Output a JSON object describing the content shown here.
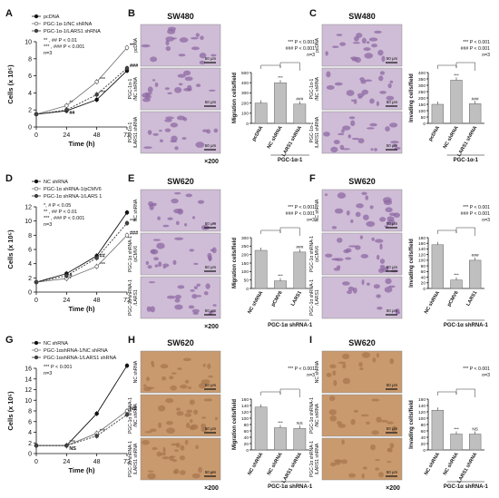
{
  "rows": [
    {
      "growth": {
        "letter": "A",
        "ylabel": "Cells (x 10⁵)",
        "xlabel": "Time (h)",
        "yticks": [
          "0",
          "2",
          "4",
          "6",
          "8",
          "10"
        ],
        "xticks": [
          "0",
          "24",
          "48",
          "72"
        ],
        "legend": [
          "pcDNA",
          "PGC-1α-1/NC shRNA",
          "PGC-1α-1/LARS1 shRNA"
        ],
        "stats": [
          "** , ## P < 0.01",
          "*** , ### P < 0.001",
          "n=3"
        ],
        "sig": [
          {
            "text": "**",
            "color": "#555555"
          },
          {
            "text": "##",
            "color": "#111111"
          },
          {
            "text": "***",
            "color": "#555555"
          },
          {
            "text": "**",
            "color": "#111111"
          },
          {
            "text": "***",
            "color": "#555555"
          },
          {
            "text": "###",
            "color": "#111111"
          }
        ]
      },
      "micro": {
        "letter": "B",
        "cell_line": "SW480",
        "mag": "×200",
        "scale": "50 μm",
        "labels": [
          "pcDNA",
          "PGC-1α-1 /NC shRNA",
          "PGC-1α-1 /LARS1 shRNA"
        ]
      },
      "bar": {
        "ylabel": "Migration cells/field",
        "yticks": [
          "0",
          "100",
          "200",
          "300",
          "400",
          "500"
        ],
        "xlabels": [
          "pcDNA",
          "NC shRNA",
          "LARS1 shRNA"
        ],
        "group": "PGC-1α-1",
        "stats": [
          "*** P < 0.001",
          "### P < 0.001",
          "n=3"
        ],
        "sig": [
          "",
          "***",
          "###"
        ]
      },
      "micro2": {
        "letter": "C",
        "cell_line": "SW480",
        "mag": "",
        "scale": "50 μm",
        "labels": [
          "pcDNA",
          "PGC-1α-1 /NC shRNA",
          "PGC-1α-1 /LARS1 shRNA"
        ]
      },
      "bar2": {
        "ylabel": "Invading cells/field",
        "yticks": [
          "0",
          "50",
          "100",
          "150",
          "200",
          "250",
          "300",
          "350",
          "400"
        ],
        "xlabels": [
          "pcDNA",
          "NC shRNA",
          "LARS1 shRNA"
        ],
        "group": "PGC-1α-1",
        "stats": [
          "*** P < 0.001",
          "### P < 0.001",
          "n=3"
        ],
        "sig": [
          "",
          "***",
          "###"
        ]
      }
    },
    {
      "growth": {
        "letter": "D",
        "ylabel": "Cells (x 10⁵)",
        "xlabel": "Time (h)",
        "yticks": [
          "0",
          "2",
          "4",
          "6",
          "8",
          "10",
          "12"
        ],
        "xticks": [
          "0",
          "24",
          "48",
          "72"
        ],
        "legend": [
          "NC shRNA",
          "PGC-1α shRNA-1/pCMV6",
          "PGC-1α shRNA-1/LARS 1"
        ],
        "stats": [
          "*, # P < 0.05",
          "** , ## P < 0.01",
          "*** , ### P < 0.001",
          "n=3"
        ],
        "sig": [
          {
            "text": "#",
            "color": "#111111"
          },
          {
            "text": "*",
            "color": "#555555"
          },
          {
            "text": "***",
            "color": "#555555"
          },
          {
            "text": "###",
            "color": "#111111"
          },
          {
            "text": "##",
            "color": "#111111"
          },
          {
            "text": "***",
            "color": "#555555"
          }
        ]
      },
      "micro": {
        "letter": "E",
        "cell_line": "SW620",
        "mag": "×200",
        "scale": "50 μm",
        "labels": [
          "NC shRNA",
          "PGC-1α shRNA-1 /pCMV6",
          "PGC-1α shRNA-1 /LARS1"
        ]
      },
      "bar": {
        "ylabel": "Migration cells/field",
        "yticks": [
          "0",
          "50",
          "100",
          "150",
          "200",
          "250",
          "300"
        ],
        "xlabels": [
          "NC shRNA",
          "pCMV6",
          "LARS1"
        ],
        "group": "PGC-1α shRNA-1",
        "stats": [
          "*** P < 0.001",
          "### P < 0.001",
          "n=3"
        ],
        "sig": [
          "",
          "***",
          "###"
        ]
      },
      "micro2": {
        "letter": "F",
        "cell_line": "SW620",
        "mag": "",
        "scale": "50 μm",
        "labels": [
          "NC shRNA",
          "PGC-1α shRNA-1 /pCMV6",
          "PGC-1α shRNA-1 /LARS1"
        ]
      },
      "bar2": {
        "ylabel": "Invading cells/field",
        "yticks": [
          "0",
          "20",
          "40",
          "60",
          "80",
          "100",
          "120",
          "140",
          "160",
          "180"
        ],
        "xlabels": [
          "NC shRNA",
          "pCMV6",
          "LARS1"
        ],
        "group": "PGC-1α shRNA-1",
        "stats": [
          "*** P < 0.001",
          "### P < 0.001",
          "n=3"
        ],
        "sig": [
          "",
          "***",
          "###"
        ]
      }
    },
    {
      "growth": {
        "letter": "G",
        "ylabel": "Cells (x 10⁵)",
        "xlabel": "Time (h)",
        "yticks": [
          "0",
          "2",
          "4",
          "6",
          "8",
          "10",
          "12",
          "14",
          "16"
        ],
        "xticks": [
          "0",
          "24",
          "48",
          "72"
        ],
        "legend": [
          "NC shRNA",
          "PGC-1αshRNA-1/NC shRNA",
          "PGC-1αshRNA-1/LARS1 shRNA"
        ],
        "stats": [
          "*** P < 0.001",
          "n=3"
        ],
        "sig": [
          {
            "text": "***",
            "color": "#555555"
          },
          {
            "text": "NS",
            "color": "#111111"
          },
          {
            "text": "***",
            "color": "#555555"
          },
          {
            "text": "NS",
            "color": "#111111"
          }
        ]
      },
      "micro": {
        "letter": "H",
        "cell_line": "SW620",
        "mag": "×200",
        "scale": "50 μm",
        "labels": [
          "NC shRNA",
          "PGC-1α shRNA-1 /NC shRNA",
          "PGC-1α shRNA-1 /LARS1 shRNA"
        ]
      },
      "bar": {
        "ylabel": "Migration cells/field",
        "yticks": [
          "0",
          "20",
          "40",
          "60",
          "80",
          "100",
          "120",
          "140",
          "160"
        ],
        "xlabels": [
          "NC shRNA",
          "NC shRNA",
          "LARS1 shRNA"
        ],
        "group": "PGC-1α shRNA-1",
        "stats": [
          "*** P < 0.001",
          "n=3"
        ],
        "sig": [
          "",
          "***",
          "NS"
        ]
      },
      "micro2": {
        "letter": "I",
        "cell_line": "SW620",
        "mag": "×200",
        "scale": "50 μm",
        "labels": [
          "NC shRNA",
          "PGC-1α shRNA-1 /NC shRNA",
          "PGC-1α shRNA-1 /LARS1 shRNA"
        ]
      },
      "bar2": {
        "ylabel": "Invading cells/field",
        "yticks": [
          "0",
          "20",
          "40",
          "60",
          "80",
          "100",
          "120",
          "140",
          "160"
        ],
        "xlabels": [
          "NC shRNA",
          "NC shRNA",
          "LARS1 shRNA"
        ],
        "group": "PGC-1α shRNA-1",
        "stats": [
          "*** P < 0.001",
          "n=3"
        ],
        "sig": [
          "",
          "***",
          "NS"
        ]
      }
    }
  ],
  "chart_data": [
    {
      "panel": "A",
      "type": "line",
      "xlabel": "Time (h)",
      "ylabel": "Cells (x 10⁵)",
      "x": [
        0,
        24,
        48,
        72
      ],
      "ylim": [
        0,
        10
      ],
      "series": [
        {
          "name": "pcDNA",
          "values": [
            1.5,
            1.9,
            3.2,
            6.6
          ]
        },
        {
          "name": "PGC-1α-1/NC shRNA",
          "values": [
            1.5,
            2.5,
            5.3,
            9.3
          ]
        },
        {
          "name": "PGC-1α-1/LARS1 shRNA",
          "values": [
            1.5,
            2.0,
            3.8,
            6.9
          ]
        }
      ]
    },
    {
      "panel": "B",
      "type": "bar",
      "ylabel": "Migration cells/field",
      "ylim": [
        0,
        500
      ],
      "categories": [
        "pcDNA",
        "NC shRNA",
        "LARS1 shRNA"
      ],
      "values": [
        200,
        400,
        190
      ]
    },
    {
      "panel": "C",
      "type": "bar",
      "ylabel": "Invading cells/field",
      "ylim": [
        0,
        400
      ],
      "categories": [
        "pcDNA",
        "NC shRNA",
        "LARS1 shRNA"
      ],
      "values": [
        150,
        340,
        155
      ]
    },
    {
      "panel": "D",
      "type": "line",
      "xlabel": "Time (h)",
      "ylabel": "Cells (x 10⁵)",
      "x": [
        0,
        24,
        48,
        72
      ],
      "ylim": [
        0,
        12
      ],
      "series": [
        {
          "name": "NC shRNA",
          "values": [
            1.4,
            2.6,
            5.1,
            11.2
          ]
        },
        {
          "name": "PGC-1α shRNA-1/pCMV6",
          "values": [
            1.4,
            1.9,
            3.6,
            8.0
          ]
        },
        {
          "name": "PGC-1α shRNA-1/LARS 1",
          "values": [
            1.4,
            2.3,
            4.8,
            9.7
          ]
        }
      ]
    },
    {
      "panel": "E",
      "type": "bar",
      "ylabel": "Migration cells/field",
      "ylim": [
        0,
        300
      ],
      "categories": [
        "NC shRNA",
        "pCMV6",
        "LARS1"
      ],
      "values": [
        225,
        45,
        215
      ]
    },
    {
      "panel": "F",
      "type": "bar",
      "ylabel": "Invading cells/field",
      "ylim": [
        0,
        180
      ],
      "categories": [
        "NC shRNA",
        "pCMV6",
        "LARS1"
      ],
      "values": [
        155,
        30,
        100
      ]
    },
    {
      "panel": "G",
      "type": "line",
      "xlabel": "Time (h)",
      "ylabel": "Cells (x 10⁵)",
      "x": [
        0,
        24,
        48,
        72
      ],
      "ylim": [
        0,
        16
      ],
      "series": [
        {
          "name": "NC shRNA",
          "values": [
            1.5,
            1.5,
            7.5,
            16.5
          ]
        },
        {
          "name": "PGC-1αshRNA-1/NC shRNA",
          "values": [
            1.5,
            1.5,
            3.8,
            8.0
          ]
        },
        {
          "name": "PGC-1αshRNA-1/LARS1 shRNA",
          "values": [
            1.5,
            1.5,
            3.3,
            7.3
          ]
        }
      ]
    },
    {
      "panel": "H",
      "type": "bar",
      "ylabel": "Migration cells/field",
      "ylim": [
        0,
        160
      ],
      "categories": [
        "NC shRNA",
        "NC shRNA",
        "LARS1 shRNA"
      ],
      "values": [
        135,
        70,
        68
      ]
    },
    {
      "panel": "I",
      "type": "bar",
      "ylabel": "Invading cells/field",
      "ylim": [
        0,
        160
      ],
      "categories": [
        "NC shRNA",
        "NC shRNA",
        "LARS1 shRNA"
      ],
      "values": [
        125,
        50,
        50
      ]
    }
  ],
  "colors": {
    "bar": "#bfbfbf",
    "axis": "#111111",
    "series": [
      "#111111",
      "#777777",
      "#333333"
    ],
    "micro_purple": "#cfbcd6",
    "micro_tan": "#c99a6e"
  }
}
